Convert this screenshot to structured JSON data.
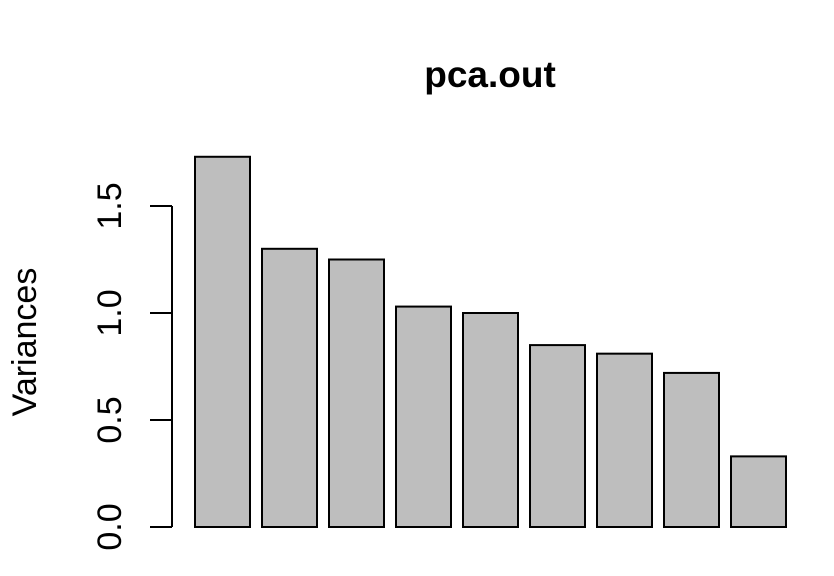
{
  "chart_data": {
    "type": "bar",
    "title": "pca.out",
    "xlabel": "",
    "ylabel": "Variances",
    "categories": [
      "",
      "",
      "",
      "",
      "",
      "",
      "",
      "",
      ""
    ],
    "values": [
      1.73,
      1.3,
      1.25,
      1.03,
      1.0,
      0.85,
      0.81,
      0.72,
      0.33
    ],
    "ylim": [
      0,
      1.73
    ],
    "y_ticks": [
      {
        "value": 0.0,
        "label": "0.0"
      },
      {
        "value": 0.5,
        "label": "0.5"
      },
      {
        "value": 1.0,
        "label": "1.0"
      },
      {
        "value": 1.5,
        "label": "1.5"
      }
    ],
    "bar_color": "#bebebe",
    "grid": false,
    "legend": "none"
  }
}
